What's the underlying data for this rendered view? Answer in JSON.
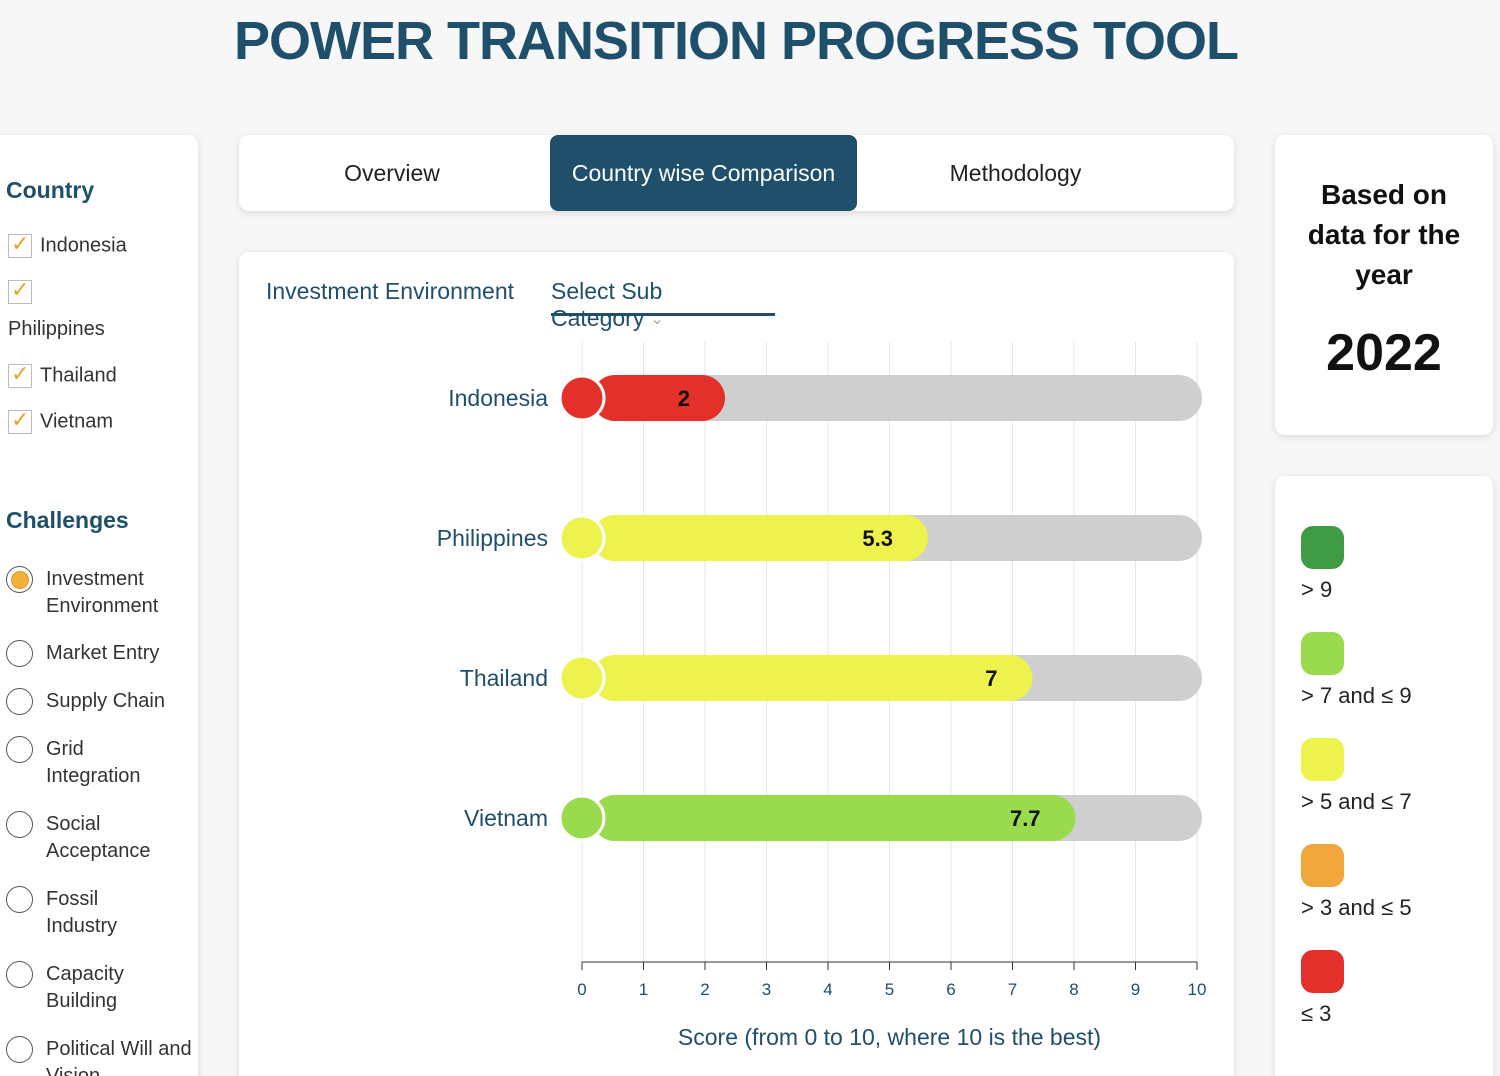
{
  "header": {
    "title": "POWER TRANSITION PROGRESS TOOL"
  },
  "sidebar": {
    "country_heading": "Country",
    "countries": [
      {
        "label": "Indonesia",
        "checked": true
      },
      {
        "label": "Philippines",
        "checked": true
      },
      {
        "label": "Thailand",
        "checked": true
      },
      {
        "label": "Vietnam",
        "checked": true
      }
    ],
    "challenges_heading": "Challenges",
    "challenges": [
      {
        "label": "Investment Environment",
        "selected": true
      },
      {
        "label": "Market Entry",
        "selected": false
      },
      {
        "label": "Supply Chain",
        "selected": false
      },
      {
        "label": "Grid Integration",
        "selected": false
      },
      {
        "label": "Social Acceptance",
        "selected": false
      },
      {
        "label": "Fossil Industry",
        "selected": false
      },
      {
        "label": "Capacity Building",
        "selected": false
      },
      {
        "label": "Political Will and Vision",
        "selected": false
      }
    ]
  },
  "tabs": [
    {
      "label": "Overview",
      "active": false
    },
    {
      "label": "Country wise Comparison",
      "active": true
    },
    {
      "label": "Methodology",
      "active": false
    }
  ],
  "main": {
    "category": "Investment Environment",
    "subcategory_placeholder": "Select Sub Category"
  },
  "chart_data": {
    "type": "bar",
    "orientation": "horizontal",
    "categories": [
      "Indonesia",
      "Philippines",
      "Thailand",
      "Vietnam"
    ],
    "values": [
      2,
      5.3,
      7,
      7.7
    ],
    "value_labels": [
      "2",
      "5.3",
      "7",
      "7.7"
    ],
    "colors": [
      "#e3302a",
      "#eef24c",
      "#eef24c",
      "#9adb4e"
    ],
    "xlim": [
      0,
      10
    ],
    "xticks": [
      0,
      1,
      2,
      3,
      4,
      5,
      6,
      7,
      8,
      9,
      10
    ],
    "xlabel": "Score (from 0 to 10, where 10 is the best)",
    "grid": true,
    "track_color": "#cfcfcf"
  },
  "year_card": {
    "caption": "Based on data for the year",
    "year": "2022"
  },
  "legend": [
    {
      "label": "> 9",
      "color": "#3f9c45"
    },
    {
      "label": "> 7 and ≤ 9",
      "color": "#9adb4e"
    },
    {
      "label": "> 5 and ≤ 7",
      "color": "#eef24c"
    },
    {
      "label": "> 3 and ≤ 5",
      "color": "#f0a63a"
    },
    {
      "label": "≤ 3",
      "color": "#e3302a"
    }
  ]
}
